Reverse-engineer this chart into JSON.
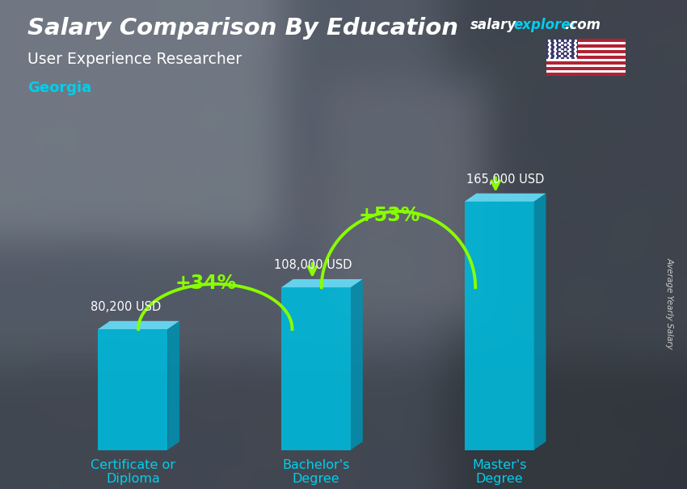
{
  "title": "Salary Comparison By Education",
  "subtitle": "User Experience Researcher",
  "location": "Georgia",
  "ylabel_rotated": "Average Yearly Salary",
  "categories": [
    "Certificate or\nDiploma",
    "Bachelor's\nDegree",
    "Master's\nDegree"
  ],
  "values": [
    80200,
    108000,
    165000
  ],
  "value_labels": [
    "80,200 USD",
    "108,000 USD",
    "165,000 USD"
  ],
  "pct_labels": [
    "+34%",
    "+53%"
  ],
  "bar_front": "#00b8d9",
  "bar_top": "#66d9f5",
  "bar_side": "#0090b0",
  "bar_dark_side": "#005f7a",
  "title_color": "#ffffff",
  "subtitle_color": "#ffffff",
  "location_color": "#00cfee",
  "value_label_color": "#ffffff",
  "pct_color": "#88ff00",
  "arrow_color": "#88ff00",
  "xticklabel_color": "#00cfee",
  "ylabel_color": "#cccccc",
  "watermark_salary": "#ffffff",
  "watermark_explorer": "#00cfee",
  "watermark_com": "#ffffff",
  "bar_width": 0.38,
  "bar_spacing": 1.0,
  "ylim_max": 195000,
  "bg_base": "#5a6070",
  "bg_light": "#8090a0"
}
